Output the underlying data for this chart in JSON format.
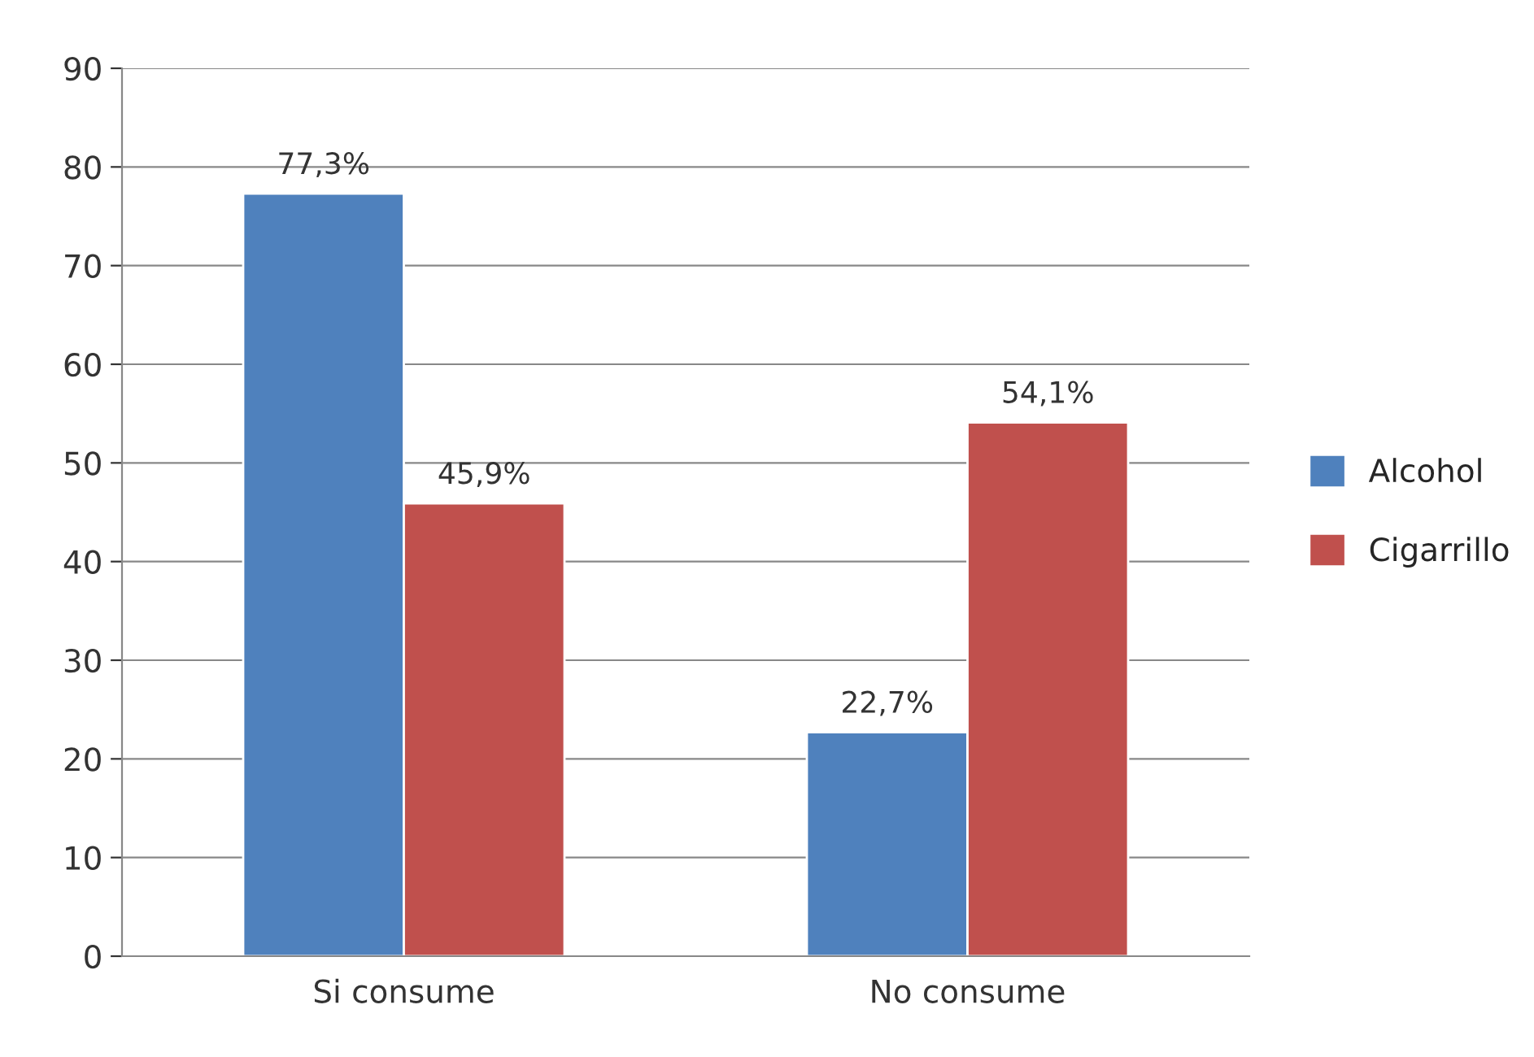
{
  "chart_data": {
    "type": "bar",
    "categories": [
      "Si consume",
      "No consume"
    ],
    "series": [
      {
        "name": "Alcohol",
        "color": "#4f81bd",
        "values": [
          77.3,
          22.7
        ],
        "value_labels": [
          "77,3%",
          "22,7%"
        ]
      },
      {
        "name": "Cigarrillo",
        "color": "#c0504d",
        "values": [
          45.9,
          54.1
        ],
        "value_labels": [
          "45,9%",
          "54,1%"
        ]
      }
    ],
    "ylim": [
      0,
      90
    ],
    "yticks": [
      0,
      10,
      20,
      30,
      40,
      50,
      60,
      70,
      80,
      90
    ],
    "grid": "y",
    "legend": "right"
  }
}
